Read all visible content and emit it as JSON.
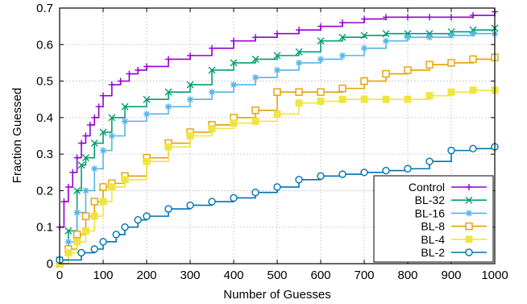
{
  "chart_data": {
    "type": "line",
    "title": "",
    "xlabel": "Number of Guesses",
    "ylabel": "Fraction Guessed",
    "xlim": [
      0,
      1000
    ],
    "ylim": [
      0,
      0.7
    ],
    "xticks": [
      0,
      100,
      200,
      300,
      400,
      500,
      600,
      700,
      800,
      900,
      1000
    ],
    "xtick_labels": [
      "0",
      "100",
      "200",
      "300",
      "400",
      "500",
      "600",
      "700",
      "800",
      "900",
      "1000"
    ],
    "yticks": [
      0,
      0.1,
      0.2,
      0.3,
      0.4,
      0.5,
      0.6,
      0.7
    ],
    "ytick_labels": [
      "0",
      "0.1",
      "0.2",
      "0.3",
      "0.4",
      "0.5",
      "0.6",
      "0.7"
    ],
    "grid": true,
    "legend_position": "bottom-right",
    "series": [
      {
        "name": "Control",
        "color": "#9400d3",
        "marker": "plus",
        "x": [
          0,
          10,
          20,
          30,
          40,
          50,
          60,
          70,
          80,
          90,
          100,
          120,
          140,
          160,
          180,
          200,
          250,
          300,
          350,
          400,
          450,
          500,
          550,
          600,
          650,
          700,
          750,
          800,
          850,
          900,
          950,
          1000
        ],
        "y": [
          0.1,
          0.17,
          0.21,
          0.25,
          0.29,
          0.33,
          0.35,
          0.38,
          0.4,
          0.43,
          0.46,
          0.49,
          0.5,
          0.52,
          0.53,
          0.54,
          0.56,
          0.57,
          0.59,
          0.61,
          0.62,
          0.63,
          0.64,
          0.65,
          0.66,
          0.67,
          0.675,
          0.675,
          0.675,
          0.675,
          0.68,
          0.69
        ]
      },
      {
        "name": "BL-32",
        "color": "#009e73",
        "marker": "x",
        "x": [
          0,
          20,
          40,
          50,
          60,
          80,
          100,
          120,
          150,
          200,
          250,
          300,
          350,
          400,
          450,
          500,
          550,
          600,
          650,
          700,
          750,
          800,
          850,
          900,
          950,
          1000
        ],
        "y": [
          0.01,
          0.09,
          0.2,
          0.27,
          0.29,
          0.33,
          0.36,
          0.4,
          0.43,
          0.45,
          0.47,
          0.49,
          0.53,
          0.55,
          0.56,
          0.57,
          0.58,
          0.61,
          0.62,
          0.625,
          0.63,
          0.63,
          0.63,
          0.635,
          0.64,
          0.645
        ]
      },
      {
        "name": "BL-16",
        "color": "#56b4e9",
        "marker": "star",
        "x": [
          0,
          20,
          40,
          60,
          80,
          100,
          120,
          150,
          200,
          250,
          300,
          350,
          400,
          450,
          500,
          550,
          600,
          650,
          700,
          750,
          800,
          850,
          900,
          950,
          1000
        ],
        "y": [
          0.01,
          0.06,
          0.14,
          0.2,
          0.26,
          0.31,
          0.35,
          0.39,
          0.41,
          0.43,
          0.45,
          0.47,
          0.49,
          0.51,
          0.53,
          0.55,
          0.56,
          0.57,
          0.59,
          0.61,
          0.62,
          0.62,
          0.625,
          0.63,
          0.63
        ]
      },
      {
        "name": "BL-8",
        "color": "#e69f00",
        "marker": "square-open",
        "x": [
          0,
          20,
          40,
          60,
          80,
          100,
          120,
          150,
          200,
          250,
          300,
          350,
          400,
          450,
          500,
          550,
          600,
          650,
          700,
          750,
          800,
          850,
          900,
          950,
          1000
        ],
        "y": [
          0.0,
          0.04,
          0.08,
          0.13,
          0.17,
          0.21,
          0.22,
          0.24,
          0.29,
          0.33,
          0.36,
          0.38,
          0.4,
          0.42,
          0.47,
          0.47,
          0.47,
          0.48,
          0.5,
          0.52,
          0.53,
          0.545,
          0.55,
          0.56,
          0.565
        ]
      },
      {
        "name": "BL-4",
        "color": "#f0e442",
        "marker": "square-filled",
        "x": [
          0,
          20,
          40,
          60,
          80,
          100,
          120,
          150,
          200,
          250,
          300,
          350,
          400,
          450,
          500,
          550,
          600,
          650,
          700,
          750,
          800,
          850,
          900,
          950,
          1000
        ],
        "y": [
          0.0,
          0.03,
          0.06,
          0.09,
          0.13,
          0.17,
          0.21,
          0.23,
          0.28,
          0.32,
          0.35,
          0.37,
          0.385,
          0.39,
          0.41,
          0.44,
          0.445,
          0.45,
          0.45,
          0.45,
          0.45,
          0.46,
          0.47,
          0.475,
          0.475
        ]
      },
      {
        "name": "BL-2",
        "color": "#0072b2",
        "marker": "circle-open",
        "x": [
          0,
          50,
          80,
          100,
          130,
          150,
          180,
          200,
          250,
          300,
          350,
          400,
          450,
          500,
          550,
          600,
          650,
          700,
          750,
          800,
          850,
          900,
          950,
          1000
        ],
        "y": [
          0.01,
          0.03,
          0.04,
          0.06,
          0.08,
          0.1,
          0.12,
          0.13,
          0.15,
          0.16,
          0.17,
          0.18,
          0.195,
          0.21,
          0.23,
          0.24,
          0.245,
          0.25,
          0.255,
          0.26,
          0.28,
          0.31,
          0.315,
          0.32
        ]
      }
    ]
  }
}
